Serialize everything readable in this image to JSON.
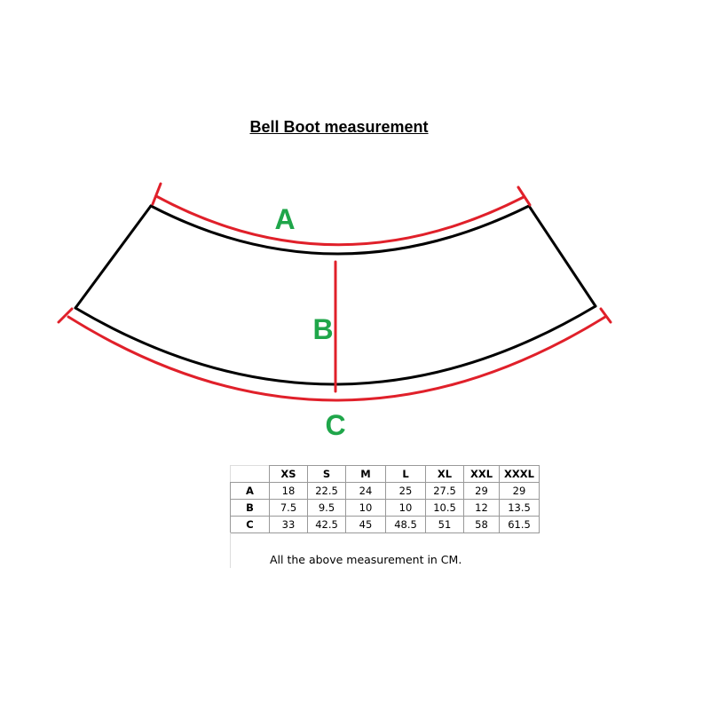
{
  "title": "Bell Boot measurement",
  "labels": {
    "a": "A",
    "b": "B",
    "c": "C"
  },
  "colors": {
    "outline": "#000000",
    "measure": "#e0202a",
    "label": "#1fa64a"
  },
  "table": {
    "columns": [
      "",
      "XS",
      "S",
      "M",
      "L",
      "XL",
      "XXL",
      "XXXL"
    ],
    "rows": [
      {
        "label": "A",
        "values": [
          "18",
          "22.5",
          "24",
          "25",
          "27.5",
          "29",
          "29"
        ]
      },
      {
        "label": "B",
        "values": [
          "7.5",
          "9.5",
          "10",
          "10",
          "10.5",
          "12",
          "13.5"
        ]
      },
      {
        "label": "C",
        "values": [
          "33",
          "42.5",
          "45",
          "48.5",
          "51",
          "58",
          "61.5"
        ]
      }
    ]
  },
  "note": "All the above measurement in CM."
}
